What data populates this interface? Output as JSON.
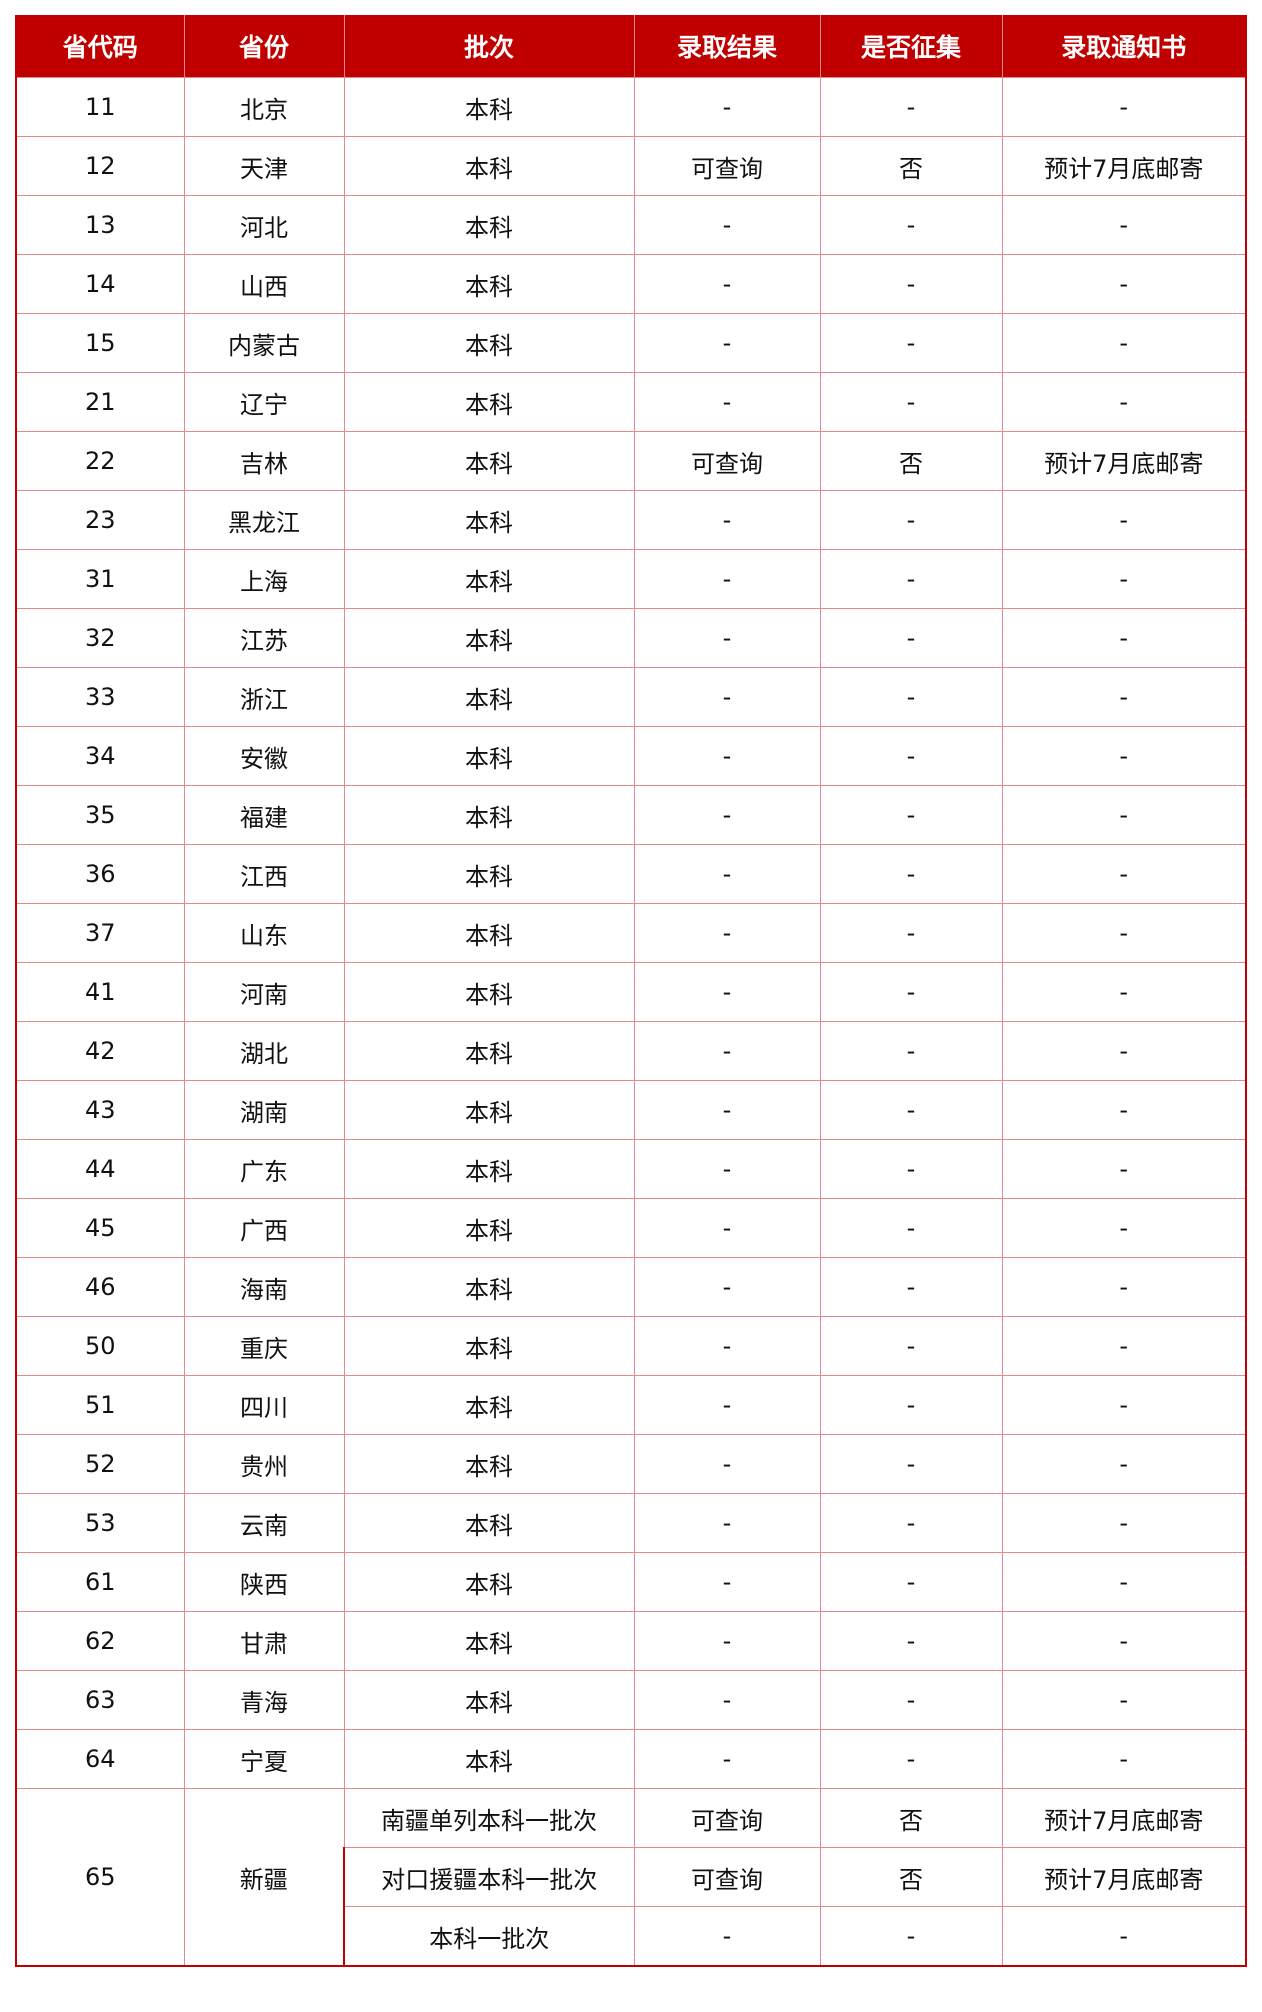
{
  "colors": {
    "header_bg": "#c00000",
    "border": "#e58a8c"
  },
  "headers": [
    "省代码",
    "省份",
    "批次",
    "录取结果",
    "是否征集",
    "录取通知书"
  ],
  "rows": [
    [
      "11",
      "北京",
      "本科",
      "-",
      "-",
      "-"
    ],
    [
      "12",
      "天津",
      "本科",
      "可查询",
      "否",
      "预计7月底邮寄"
    ],
    [
      "13",
      "河北",
      "本科",
      "-",
      "-",
      "-"
    ],
    [
      "14",
      "山西",
      "本科",
      "-",
      "-",
      "-"
    ],
    [
      "15",
      "内蒙古",
      "本科",
      "-",
      "-",
      "-"
    ],
    [
      "21",
      "辽宁",
      "本科",
      "-",
      "-",
      "-"
    ],
    [
      "22",
      "吉林",
      "本科",
      "可查询",
      "否",
      "预计7月底邮寄"
    ],
    [
      "23",
      "黑龙江",
      "本科",
      "-",
      "-",
      "-"
    ],
    [
      "31",
      "上海",
      "本科",
      "-",
      "-",
      "-"
    ],
    [
      "32",
      "江苏",
      "本科",
      "-",
      "-",
      "-"
    ],
    [
      "33",
      "浙江",
      "本科",
      "-",
      "-",
      "-"
    ],
    [
      "34",
      "安徽",
      "本科",
      "-",
      "-",
      "-"
    ],
    [
      "35",
      "福建",
      "本科",
      "-",
      "-",
      "-"
    ],
    [
      "36",
      "江西",
      "本科",
      "-",
      "-",
      "-"
    ],
    [
      "37",
      "山东",
      "本科",
      "-",
      "-",
      "-"
    ],
    [
      "41",
      "河南",
      "本科",
      "-",
      "-",
      "-"
    ],
    [
      "42",
      "湖北",
      "本科",
      "-",
      "-",
      "-"
    ],
    [
      "43",
      "湖南",
      "本科",
      "-",
      "-",
      "-"
    ],
    [
      "44",
      "广东",
      "本科",
      "-",
      "-",
      "-"
    ],
    [
      "45",
      "广西",
      "本科",
      "-",
      "-",
      "-"
    ],
    [
      "46",
      "海南",
      "本科",
      "-",
      "-",
      "-"
    ],
    [
      "50",
      "重庆",
      "本科",
      "-",
      "-",
      "-"
    ],
    [
      "51",
      "四川",
      "本科",
      "-",
      "-",
      "-"
    ],
    [
      "52",
      "贵州",
      "本科",
      "-",
      "-",
      "-"
    ],
    [
      "53",
      "云南",
      "本科",
      "-",
      "-",
      "-"
    ],
    [
      "61",
      "陕西",
      "本科",
      "-",
      "-",
      "-"
    ],
    [
      "62",
      "甘肃",
      "本科",
      "-",
      "-",
      "-"
    ],
    [
      "63",
      "青海",
      "本科",
      "-",
      "-",
      "-"
    ],
    [
      "64",
      "宁夏",
      "本科",
      "-",
      "-",
      "-"
    ]
  ],
  "xinjiang": {
    "code": "65",
    "province": "新疆",
    "batches": [
      [
        "南疆单列本科一批次",
        "可查询",
        "否",
        "预计7月底邮寄"
      ],
      [
        "对口援疆本科一批次",
        "可查询",
        "否",
        "预计7月底邮寄"
      ],
      [
        "本科一批次",
        "-",
        "-",
        "-"
      ]
    ]
  }
}
